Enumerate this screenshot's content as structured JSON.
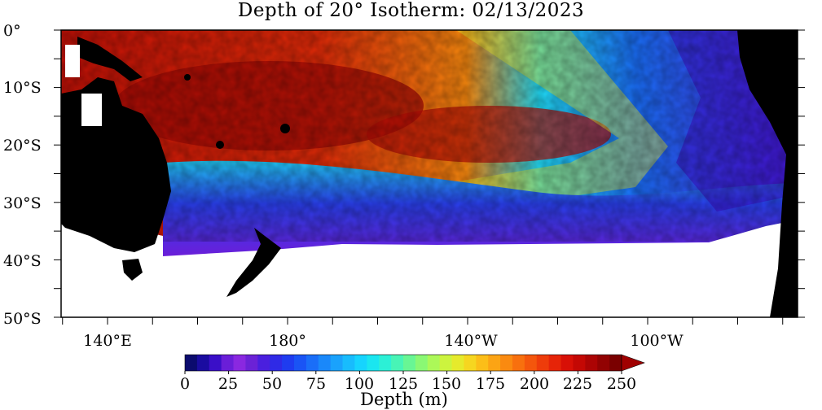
{
  "title": "Depth of 20° Isotherm: 02/13/2023",
  "lat_labels": [
    "0°",
    "10°S",
    "20°S",
    "30°S",
    "40°S",
    "50°S"
  ],
  "lon_labels": [
    "140°E",
    "180°",
    "140°W",
    "100°W"
  ],
  "colorbar": {
    "title": "Depth (m)",
    "tick_labels": [
      "0",
      "25",
      "50",
      "75",
      "100",
      "125",
      "150",
      "175",
      "200",
      "225",
      "250"
    ],
    "palette": [
      "#0b0b6e",
      "#1a0ca0",
      "#3a0fc8",
      "#6a1ed8",
      "#8a28e0",
      "#6b22d6",
      "#4a1fde",
      "#2f2ae6",
      "#1f3cf0",
      "#1a54f5",
      "#1a6ef8",
      "#1a88fa",
      "#1aa2fc",
      "#18bcfd",
      "#16d4fe",
      "#1ae6f0",
      "#2cf0d6",
      "#48f4b6",
      "#68f694",
      "#8af874",
      "#acf858",
      "#ccf43e",
      "#e6ea2c",
      "#f6d620",
      "#fcbe18",
      "#fca414",
      "#fa8a10",
      "#f8700e",
      "#f4560c",
      "#ee3c0a",
      "#e62408",
      "#d81006",
      "#c40804",
      "#ac0404",
      "#920202",
      "#7a0000"
    ],
    "overflow_color": "#a00000"
  },
  "colors": {
    "land": "#000000",
    "no_data": "#ffffff",
    "shallow": "#6a1ed8",
    "deep": "#b80606"
  }
}
